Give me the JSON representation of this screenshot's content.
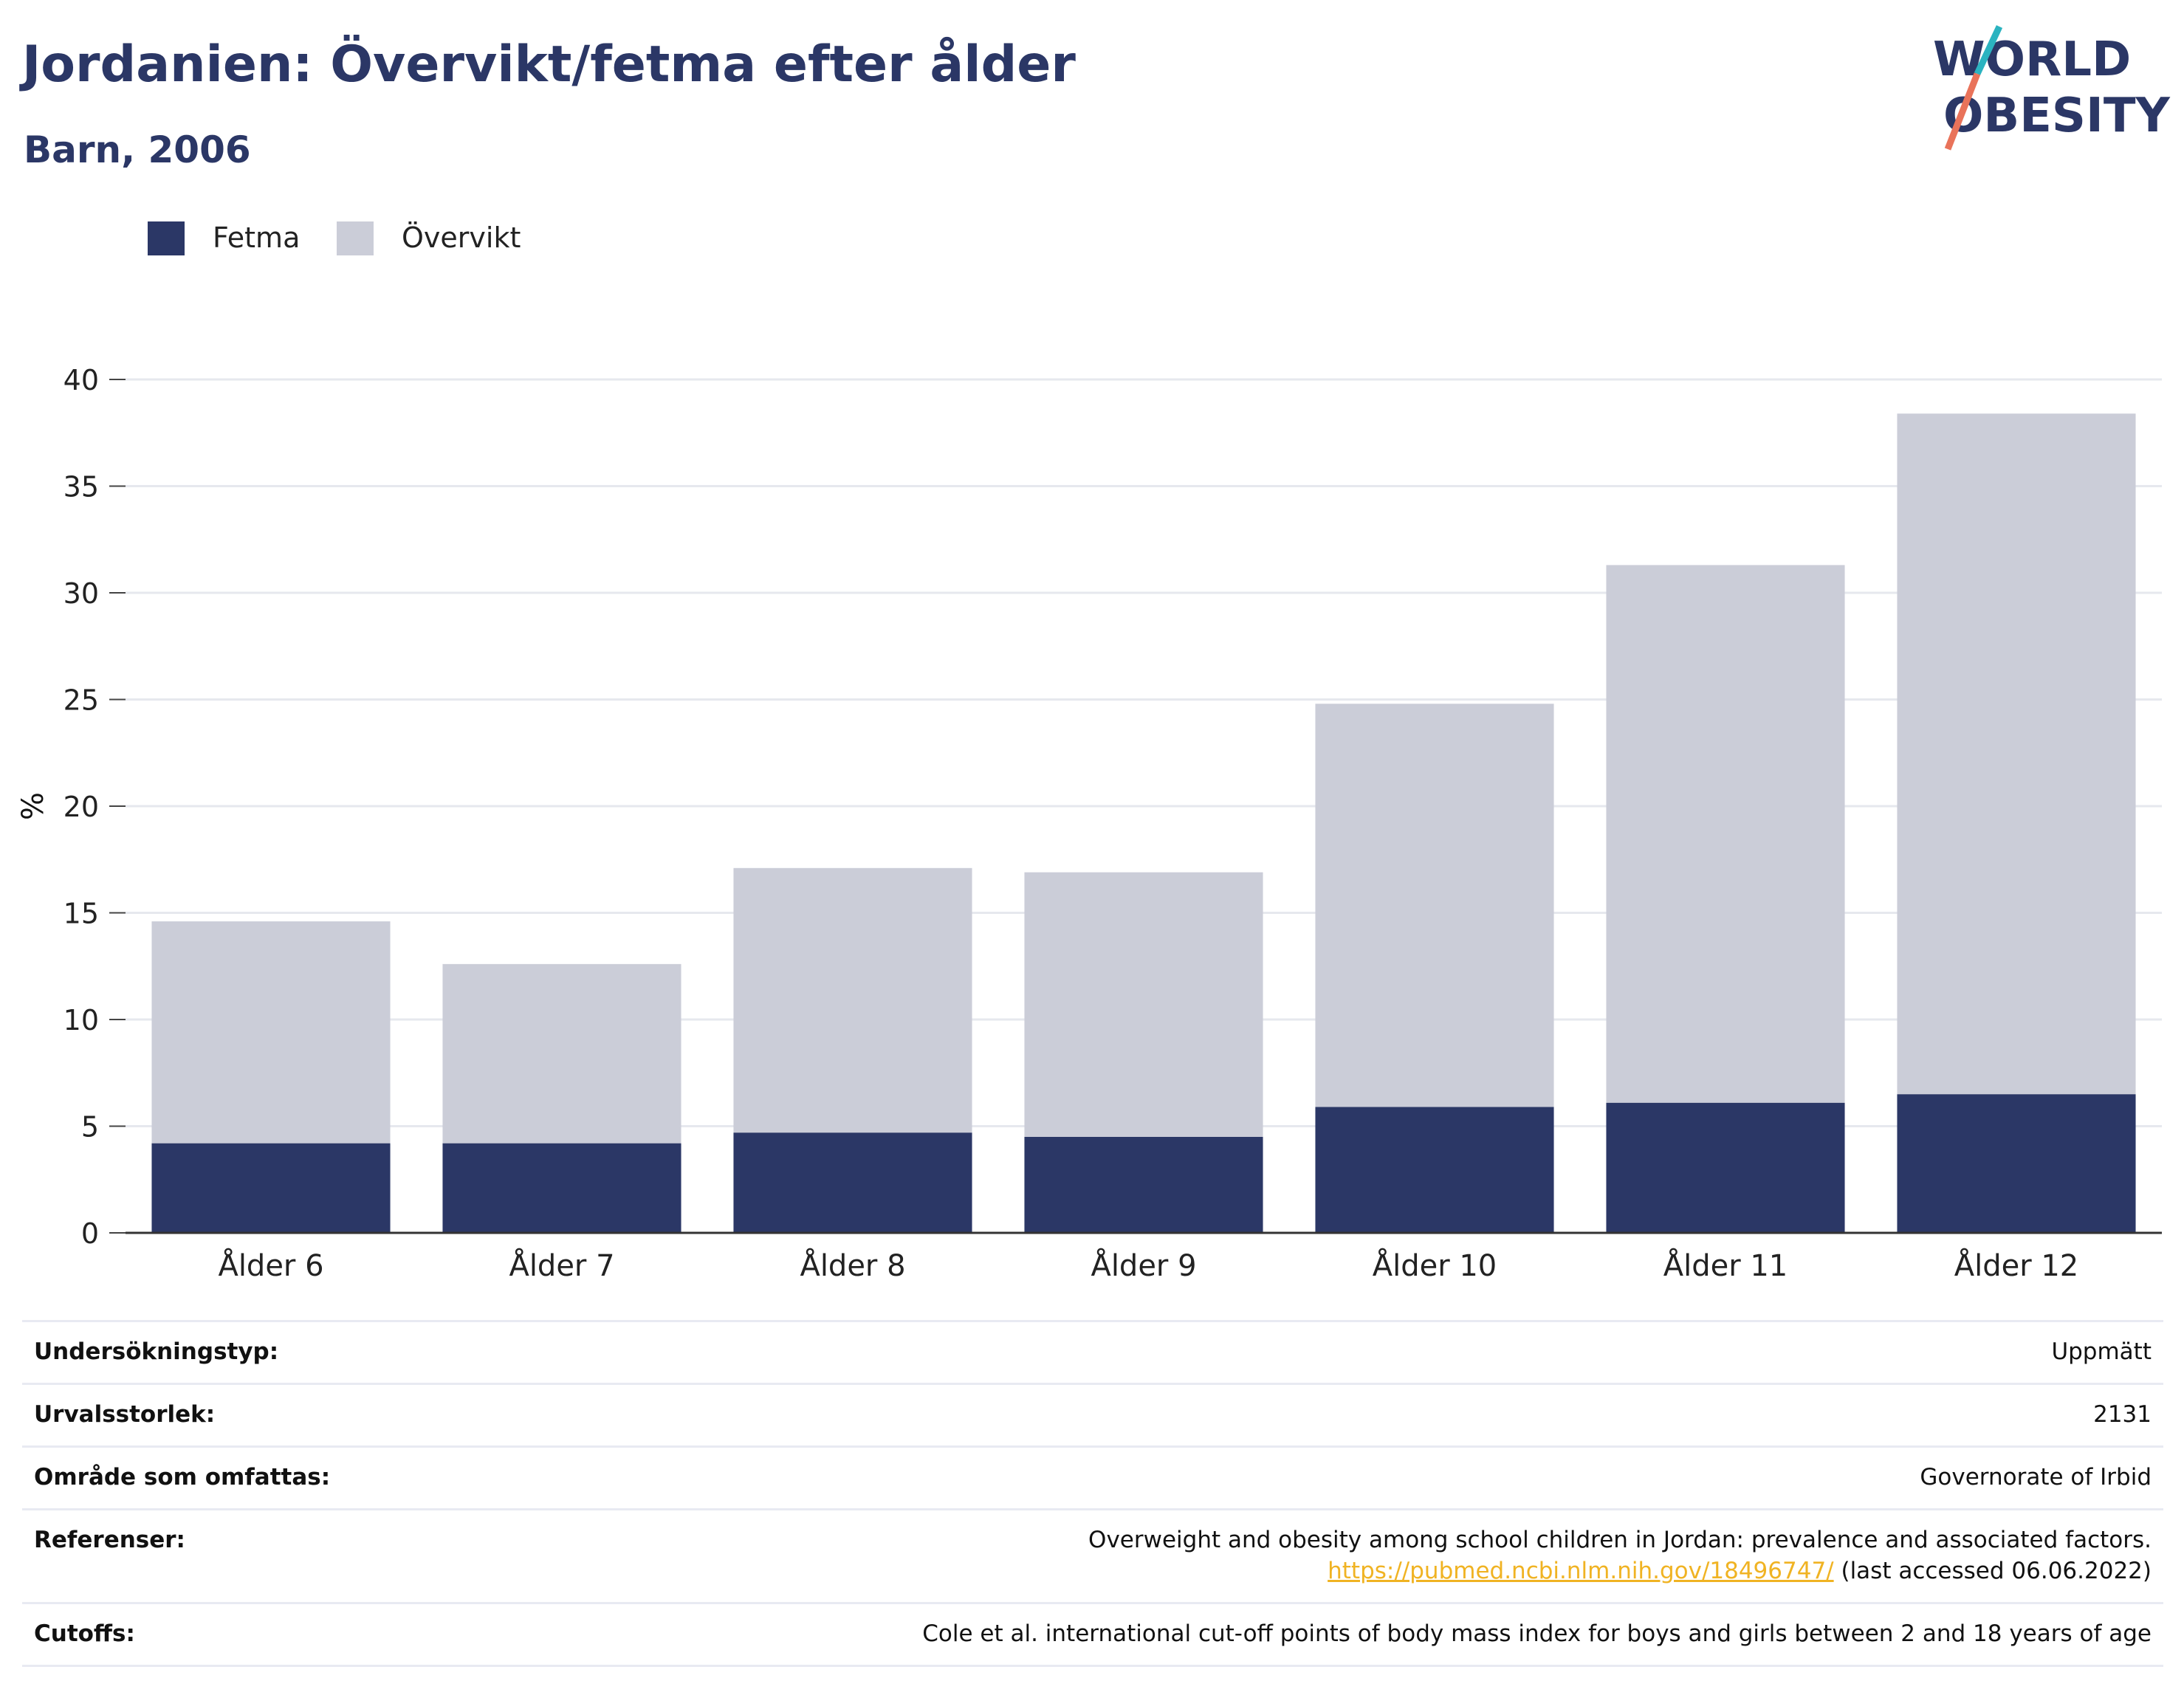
{
  "header": {
    "title": "Jordanien: Övervikt/fetma efter ålder",
    "subtitle": "Barn, 2006"
  },
  "logo": {
    "line1": "WORLD",
    "line2": "OBESITY",
    "colors": {
      "text": "#2b3766",
      "slash_top": "#2bb3c0",
      "slash_bottom": "#e9735a"
    }
  },
  "legend": {
    "items": [
      {
        "label": "Fetma",
        "color": "#2b3766"
      },
      {
        "label": "Övervikt",
        "color": "#cbcdd8"
      }
    ]
  },
  "chart_data": {
    "type": "bar",
    "stacked": true,
    "categories": [
      "Ålder 6",
      "Ålder 7",
      "Ålder 8",
      "Ålder 9",
      "Ålder 10",
      "Ålder 11",
      "Ålder 12"
    ],
    "series": [
      {
        "name": "Fetma",
        "color": "#2b3766",
        "values": [
          4.2,
          4.2,
          4.7,
          4.5,
          5.9,
          6.1,
          6.5
        ]
      },
      {
        "name": "Övervikt",
        "color": "#cbcdd8",
        "values": [
          10.4,
          8.4,
          12.4,
          12.4,
          18.9,
          25.2,
          31.9
        ]
      }
    ],
    "ylabel": "%",
    "xlabel": "",
    "ylim": [
      0,
      40
    ],
    "yticks": [
      0,
      5,
      10,
      15,
      20,
      25,
      30,
      35,
      40
    ],
    "grid": true,
    "legend_position": "top-left"
  },
  "info": {
    "rows": [
      {
        "key": "Undersökningstyp:",
        "value": "Uppmätt"
      },
      {
        "key": "Urvalsstorlek:",
        "value": "2131"
      },
      {
        "key": "Område som omfattas:",
        "value": "Governorate of Irbid"
      },
      {
        "key": "Referenser:",
        "value": "Overweight and obesity among school children in Jordan: prevalence and associated factors.",
        "link": "https://pubmed.ncbi.nlm.nih.gov/18496747/",
        "link_suffix": " (last accessed 06.06.2022)"
      },
      {
        "key": "Cutoffs:",
        "value": "Cole et al. international cut-off points of body mass index for boys and girls between 2 and 18 years of age"
      }
    ]
  }
}
